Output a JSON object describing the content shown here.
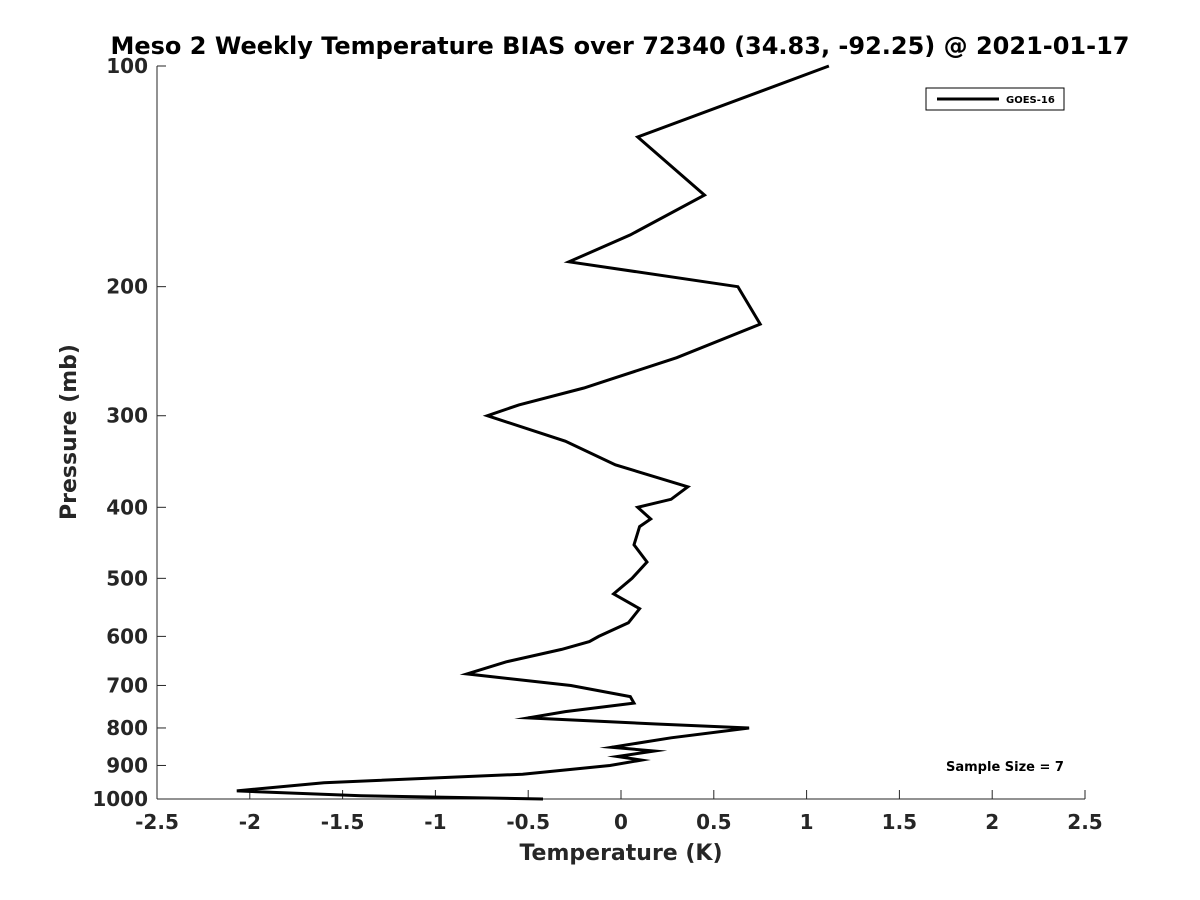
{
  "chart_data": {
    "type": "line",
    "title": "Meso 2 Weekly Temperature BIAS over 72340 (34.83, -92.25) @ 2021-01-17",
    "xlabel": "Temperature (K)",
    "ylabel": "Pressure (mb)",
    "xlim": [
      -2.5,
      2.5
    ],
    "ylim": [
      100,
      1000
    ],
    "y_scale": "log",
    "y_reversed": true,
    "grid": false,
    "legend_position": "top-right",
    "x_ticks": [
      -2.5,
      -2,
      -1.5,
      -1,
      -0.5,
      0,
      0.5,
      1,
      1.5,
      2,
      2.5
    ],
    "x_tick_labels": [
      "-2.5",
      "-2",
      "-1.5",
      "-1",
      "-0.5",
      "0",
      "0.5",
      "1",
      "1.5",
      "2",
      "2.5"
    ],
    "y_ticks": [
      100,
      200,
      300,
      400,
      500,
      600,
      700,
      800,
      900,
      1000
    ],
    "y_tick_labels": [
      "100",
      "200",
      "300",
      "400",
      "500",
      "600",
      "700",
      "800",
      "900",
      "1000"
    ],
    "series": [
      {
        "name": "GOES-16",
        "color": "#000000",
        "points": [
          [
            1.12,
            100
          ],
          [
            0.09,
            125
          ],
          [
            0.45,
            150
          ],
          [
            0.05,
            170
          ],
          [
            -0.28,
            185
          ],
          [
            0.63,
            200
          ],
          [
            0.75,
            225
          ],
          [
            0.3,
            250
          ],
          [
            -0.2,
            275
          ],
          [
            -0.55,
            290
          ],
          [
            -0.72,
            300
          ],
          [
            -0.3,
            325
          ],
          [
            -0.03,
            350
          ],
          [
            0.36,
            375
          ],
          [
            0.27,
            390
          ],
          [
            0.09,
            400
          ],
          [
            0.16,
            415
          ],
          [
            0.1,
            425
          ],
          [
            0.07,
            450
          ],
          [
            0.14,
            475
          ],
          [
            0.06,
            500
          ],
          [
            -0.04,
            525
          ],
          [
            0.1,
            550
          ],
          [
            0.04,
            575
          ],
          [
            -0.12,
            600
          ],
          [
            -0.17,
            610
          ],
          [
            -0.32,
            625
          ],
          [
            -0.62,
            650
          ],
          [
            -0.83,
            675
          ],
          [
            -0.27,
            700
          ],
          [
            0.05,
            725
          ],
          [
            0.07,
            740
          ],
          [
            -0.3,
            760
          ],
          [
            -0.5,
            775
          ],
          [
            0.19,
            790
          ],
          [
            0.69,
            800
          ],
          [
            0.27,
            825
          ],
          [
            -0.05,
            850
          ],
          [
            0.18,
            860
          ],
          [
            -0.02,
            875
          ],
          [
            0.11,
            885
          ],
          [
            -0.06,
            900
          ],
          [
            -0.53,
            925
          ],
          [
            -1.6,
            950
          ],
          [
            -2.07,
            975
          ],
          [
            -1.4,
            990
          ],
          [
            -0.42,
            1000
          ]
        ]
      }
    ],
    "legend": [
      {
        "label": "GOES-16",
        "color": "#000000"
      }
    ],
    "annotation": "Sample Size = 7"
  }
}
